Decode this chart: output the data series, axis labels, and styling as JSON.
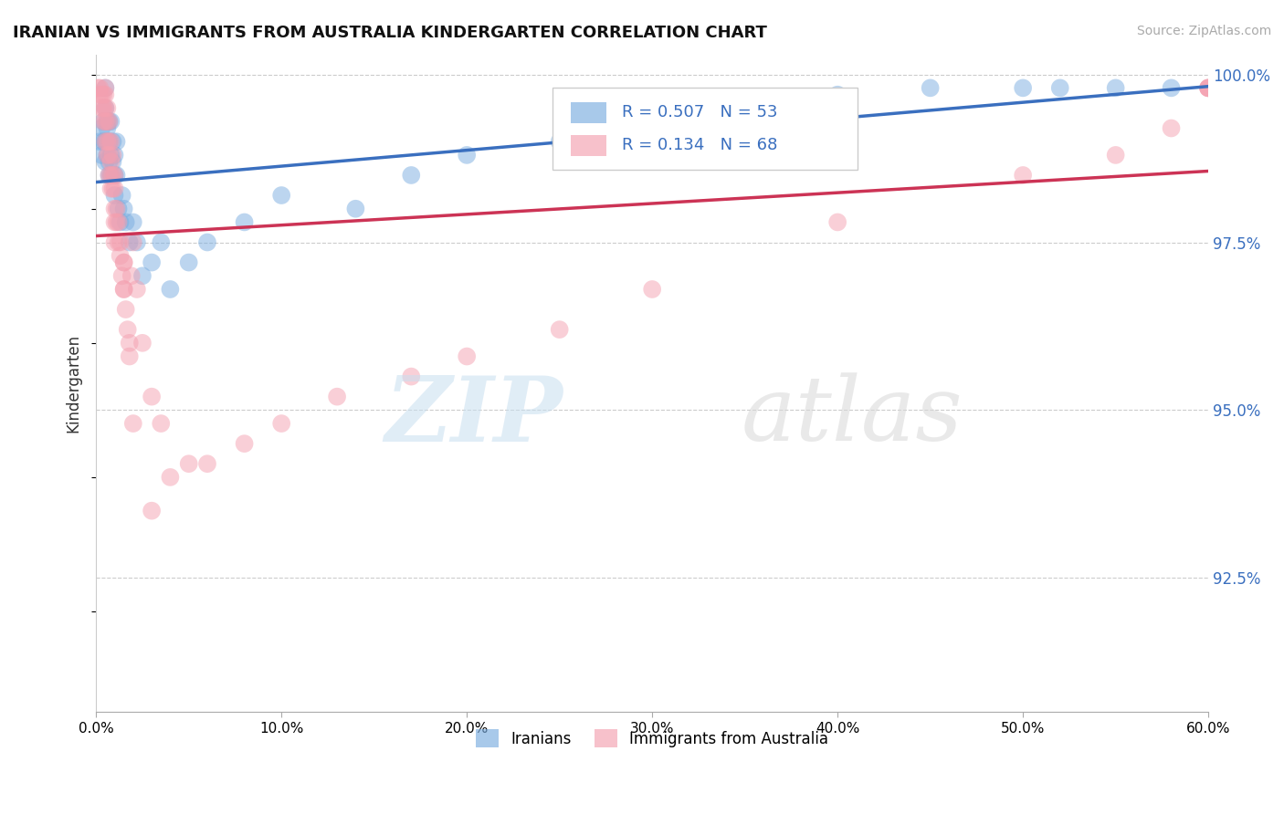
{
  "title": "IRANIAN VS IMMIGRANTS FROM AUSTRALIA KINDERGARTEN CORRELATION CHART",
  "source_text": "Source: ZipAtlas.com",
  "ylabel": "Kindergarten",
  "xlim": [
    0.0,
    0.6
  ],
  "ylim": [
    0.905,
    1.003
  ],
  "xtick_labels": [
    "0.0%",
    "10.0%",
    "20.0%",
    "30.0%",
    "40.0%",
    "50.0%",
    "60.0%"
  ],
  "xtick_values": [
    0.0,
    0.1,
    0.2,
    0.3,
    0.4,
    0.5,
    0.6
  ],
  "ytick_right_labels": [
    "92.5%",
    "95.0%",
    "97.5%",
    "100.0%"
  ],
  "ytick_right_values": [
    0.925,
    0.95,
    0.975,
    1.0
  ],
  "grid_color": "#cccccc",
  "background_color": "#ffffff",
  "iranians_color": "#7aade0",
  "australia_color": "#f4a0b0",
  "iranians_line_color": "#3a6fbf",
  "australia_line_color": "#cc3355",
  "legend_R1": "0.507",
  "legend_N1": "53",
  "legend_R2": "0.134",
  "legend_N2": "68",
  "legend_label1": "Iranians",
  "legend_label2": "Immigrants from Australia",
  "iranians_x": [
    0.002,
    0.003,
    0.003,
    0.004,
    0.004,
    0.005,
    0.005,
    0.005,
    0.005,
    0.006,
    0.006,
    0.006,
    0.007,
    0.007,
    0.007,
    0.007,
    0.008,
    0.008,
    0.008,
    0.009,
    0.009,
    0.01,
    0.01,
    0.01,
    0.011,
    0.011,
    0.012,
    0.013,
    0.014,
    0.015,
    0.016,
    0.018,
    0.02,
    0.022,
    0.025,
    0.03,
    0.035,
    0.04,
    0.05,
    0.06,
    0.08,
    0.1,
    0.14,
    0.17,
    0.2,
    0.25,
    0.3,
    0.4,
    0.45,
    0.5,
    0.52,
    0.55,
    0.58
  ],
  "iranians_y": [
    0.99,
    0.992,
    0.988,
    0.993,
    0.99,
    0.995,
    0.99,
    0.987,
    0.998,
    0.992,
    0.988,
    0.993,
    0.99,
    0.987,
    0.985,
    0.993,
    0.988,
    0.985,
    0.993,
    0.99,
    0.987,
    0.988,
    0.985,
    0.982,
    0.99,
    0.985,
    0.98,
    0.978,
    0.982,
    0.98,
    0.978,
    0.975,
    0.978,
    0.975,
    0.97,
    0.972,
    0.975,
    0.968,
    0.972,
    0.975,
    0.978,
    0.982,
    0.98,
    0.985,
    0.988,
    0.99,
    0.992,
    0.997,
    0.998,
    0.998,
    0.998,
    0.998,
    0.998
  ],
  "australia_x": [
    0.001,
    0.002,
    0.002,
    0.003,
    0.003,
    0.004,
    0.004,
    0.004,
    0.005,
    0.005,
    0.005,
    0.005,
    0.005,
    0.006,
    0.006,
    0.006,
    0.006,
    0.007,
    0.007,
    0.007,
    0.007,
    0.008,
    0.008,
    0.008,
    0.008,
    0.009,
    0.009,
    0.009,
    0.01,
    0.01,
    0.01,
    0.01,
    0.011,
    0.011,
    0.012,
    0.012,
    0.013,
    0.013,
    0.014,
    0.015,
    0.015,
    0.016,
    0.017,
    0.018,
    0.019,
    0.02,
    0.022,
    0.025,
    0.03,
    0.035,
    0.04,
    0.05,
    0.06,
    0.08,
    0.1,
    0.13,
    0.17,
    0.2,
    0.25,
    0.3,
    0.4,
    0.5,
    0.55,
    0.58,
    0.6,
    0.6,
    0.6,
    0.6
  ],
  "australia_y": [
    0.998,
    0.998,
    0.997,
    0.997,
    0.995,
    0.997,
    0.995,
    0.993,
    0.998,
    0.997,
    0.995,
    0.993,
    0.99,
    0.995,
    0.993,
    0.99,
    0.988,
    0.993,
    0.99,
    0.988,
    0.985,
    0.99,
    0.987,
    0.985,
    0.983,
    0.988,
    0.985,
    0.983,
    0.985,
    0.983,
    0.98,
    0.978,
    0.978,
    0.98,
    0.978,
    0.975,
    0.975,
    0.973,
    0.97,
    0.968,
    0.972,
    0.965,
    0.962,
    0.958,
    0.97,
    0.975,
    0.968,
    0.96,
    0.952,
    0.948,
    0.94,
    0.942,
    0.942,
    0.945,
    0.948,
    0.952,
    0.955,
    0.958,
    0.962,
    0.968,
    0.978,
    0.985,
    0.988,
    0.992,
    0.998,
    0.998,
    0.998,
    0.998
  ],
  "australia_outliers_x": [
    0.01,
    0.015,
    0.015,
    0.018,
    0.02,
    0.03
  ],
  "australia_outliers_y": [
    0.975,
    0.972,
    0.968,
    0.96,
    0.948,
    0.935
  ]
}
